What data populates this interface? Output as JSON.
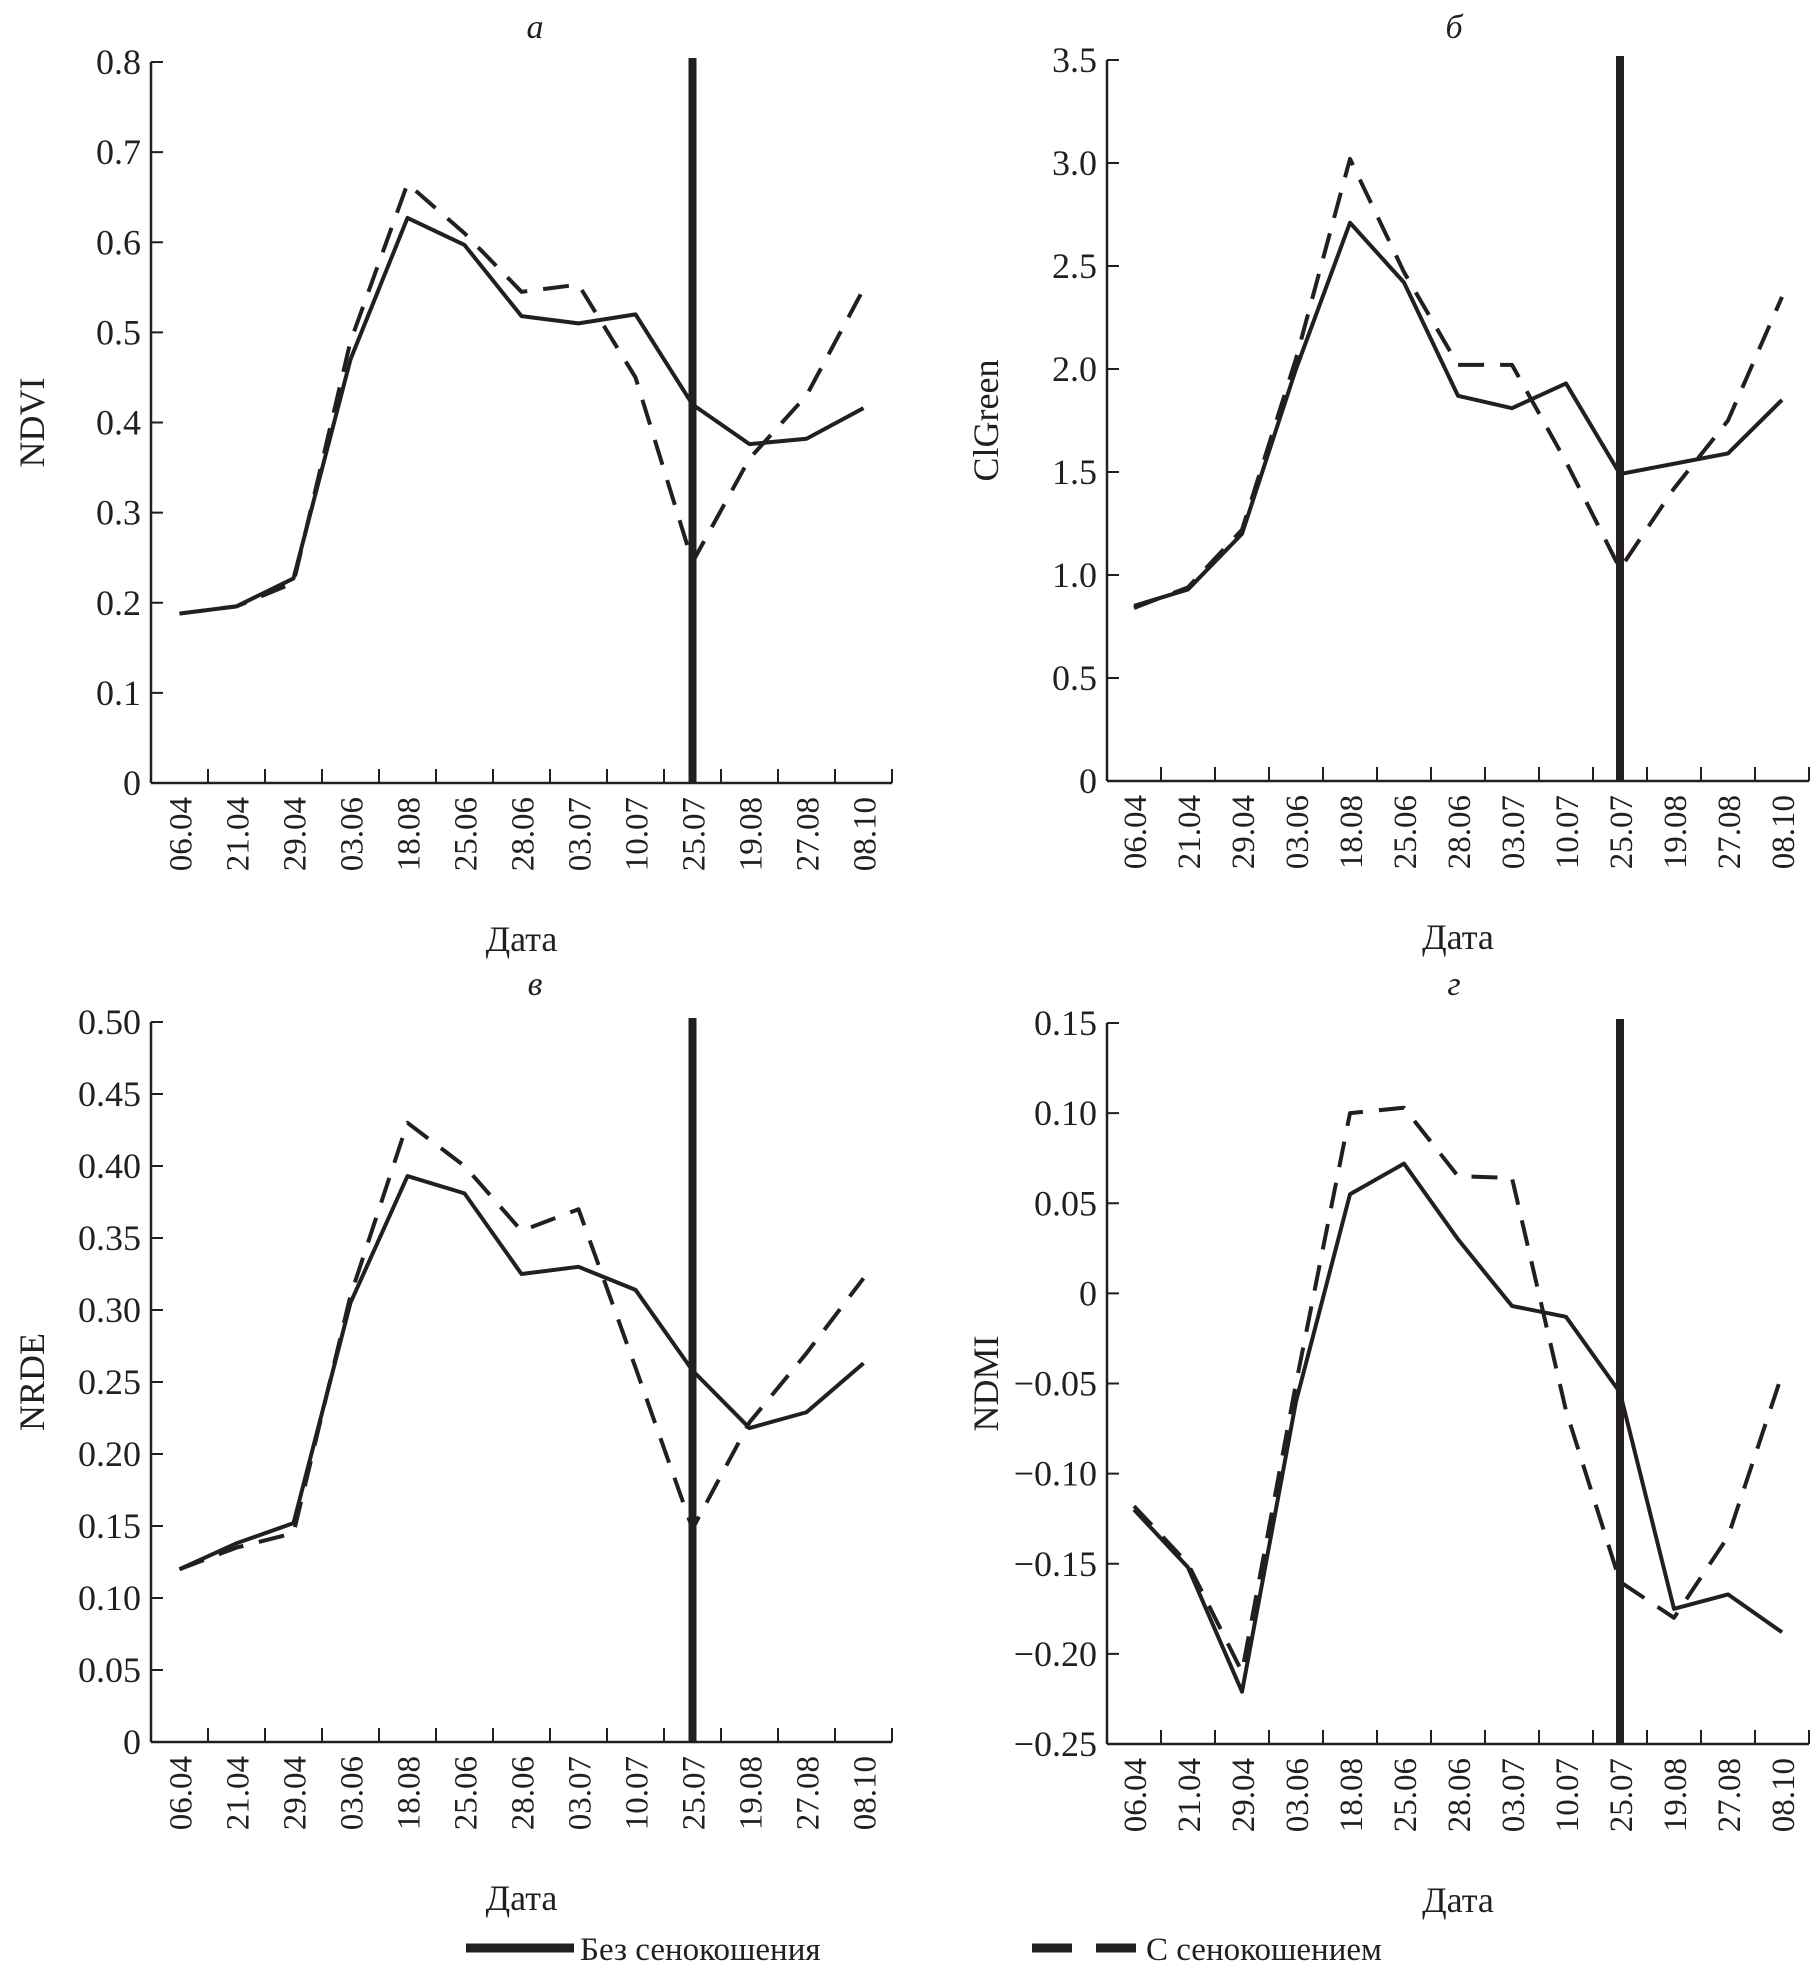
{
  "chart_data": [
    {
      "type": "line",
      "title": "а",
      "xlabel": "Дата",
      "ylabel": "NDVI",
      "categories": [
        "06.04",
        "21.04",
        "29.04",
        "03.06",
        "18.08",
        "25.06",
        "28.06",
        "03.07",
        "10.07",
        "25.07",
        "19.08",
        "27.08",
        "08.10"
      ],
      "ylim": [
        0,
        0.8
      ],
      "yticks": [
        "0",
        "0.1",
        "0.2",
        "0.3",
        "0.4",
        "0.5",
        "0.6",
        "0.7",
        "0.8"
      ],
      "marker_category": "25.07",
      "series": [
        {
          "name": "Без сенокошения",
          "style": "solid",
          "values": [
            0.188,
            0.196,
            0.227,
            0.47,
            0.627,
            0.597,
            0.518,
            0.51,
            0.52,
            0.42,
            0.376,
            0.382,
            0.416
          ]
        },
        {
          "name": "С сенокошением",
          "style": "dashed",
          "values": [
            0.188,
            0.196,
            0.222,
            0.49,
            0.665,
            0.61,
            0.545,
            0.553,
            0.45,
            0.245,
            0.36,
            0.43,
            0.548
          ]
        }
      ]
    },
    {
      "type": "line",
      "title": "б",
      "xlabel": "Дата",
      "ylabel": "ClGreen",
      "categories": [
        "06.04",
        "21.04",
        "29.04",
        "03.06",
        "18.08",
        "25.06",
        "28.06",
        "03.07",
        "10.07",
        "25.07",
        "19.08",
        "27.08",
        "08.10"
      ],
      "ylim": [
        0,
        3.5
      ],
      "yticks": [
        "0",
        "0.5",
        "1.0",
        "1.5",
        "2.0",
        "2.5",
        "3.0",
        "3.5"
      ],
      "marker_category": "25.07",
      "series": [
        {
          "name": "Без сенокошения",
          "style": "solid",
          "values": [
            0.85,
            0.93,
            1.2,
            2.0,
            2.71,
            2.42,
            1.87,
            1.81,
            1.93,
            1.49,
            1.54,
            1.59,
            1.85
          ]
        },
        {
          "name": "С сенокошением",
          "style": "dashed",
          "values": [
            0.84,
            0.94,
            1.22,
            2.05,
            3.02,
            2.47,
            2.02,
            2.02,
            1.55,
            1.03,
            1.42,
            1.75,
            2.35
          ]
        }
      ]
    },
    {
      "type": "line",
      "title": "в",
      "xlabel": "Дата",
      "ylabel": "NRDE",
      "categories": [
        "06.04",
        "21.04",
        "29.04",
        "03.06",
        "18.08",
        "25.06",
        "28.06",
        "03.07",
        "10.07",
        "25.07",
        "19.08",
        "27.08",
        "08.10"
      ],
      "ylim": [
        0,
        0.5
      ],
      "yticks": [
        "0",
        "0.05",
        "0.10",
        "0.15",
        "0.20",
        "0.25",
        "0.30",
        "0.35",
        "0.40",
        "0.45",
        "0.50"
      ],
      "marker_category": "25.07",
      "series": [
        {
          "name": "Без сенокошения",
          "style": "solid",
          "values": [
            0.12,
            0.138,
            0.152,
            0.305,
            0.393,
            0.381,
            0.325,
            0.33,
            0.314,
            0.258,
            0.218,
            0.229,
            0.263
          ]
        },
        {
          "name": "С сенокошением",
          "style": "dashed",
          "values": [
            0.12,
            0.135,
            0.145,
            0.31,
            0.43,
            0.4,
            0.355,
            0.37,
            0.26,
            0.148,
            0.222,
            0.27,
            0.322
          ]
        }
      ]
    },
    {
      "type": "line",
      "title": "г",
      "xlabel": "Дата",
      "ylabel": "NDMI",
      "categories": [
        "06.04",
        "21.04",
        "29.04",
        "03.06",
        "18.08",
        "25.06",
        "28.06",
        "03.07",
        "10.07",
        "25.07",
        "19.08",
        "27.08",
        "08.10"
      ],
      "ylim": [
        -0.25,
        0.15
      ],
      "yticks": [
        "−0.25",
        "−0.20",
        "−0.15",
        "−0.10",
        "−0.05",
        "0",
        "0.05",
        "0.10",
        "0.15"
      ],
      "marker_category": "25.07",
      "series": [
        {
          "name": "Без сенокошения",
          "style": "solid",
          "values": [
            -0.12,
            -0.152,
            -0.221,
            -0.06,
            0.055,
            0.072,
            0.03,
            -0.007,
            -0.013,
            -0.055,
            -0.175,
            -0.167,
            -0.188
          ]
        },
        {
          "name": "С сенокошением",
          "style": "dashed",
          "values": [
            -0.118,
            -0.15,
            -0.21,
            -0.05,
            0.1,
            0.103,
            0.065,
            0.064,
            -0.065,
            -0.16,
            -0.18,
            -0.135,
            -0.045
          ]
        }
      ]
    }
  ],
  "legend": {
    "placement": "bottom",
    "items": [
      {
        "label": "Без сенокошения",
        "style": "solid"
      },
      {
        "label": "С сенокошением",
        "style": "dashed"
      }
    ]
  },
  "colors": {
    "ink": "#231f20"
  }
}
